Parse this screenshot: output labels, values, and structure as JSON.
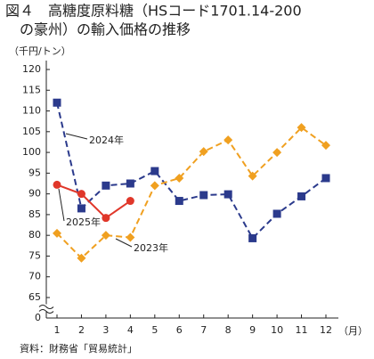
{
  "chart_data": {
    "type": "line",
    "title": [
      "図４　高糖度原料糖（HSコード1701.14-200",
      "の豪州）の輸入価格の推移"
    ],
    "y_unit": "（千円/トン）",
    "x_unit": "（月）",
    "source": "資料：財務省「貿易統計」",
    "categories": [
      1,
      2,
      3,
      4,
      5,
      6,
      7,
      8,
      9,
      10,
      11,
      12
    ],
    "ylim": [
      0,
      120
    ],
    "yticks": [
      0,
      65,
      70,
      75,
      80,
      85,
      90,
      95,
      100,
      105,
      110,
      115,
      120
    ],
    "axis_break": [
      0,
      65
    ],
    "grid": false,
    "series": [
      {
        "name": "2024年",
        "color": "#2b3a8c",
        "dash": true,
        "marker": "square",
        "values": [
          112,
          86.5,
          92,
          92.5,
          95.5,
          88.3,
          89.7,
          89.9,
          79.3,
          85.2,
          89.4,
          93.8
        ]
      },
      {
        "name": "2023年",
        "color": "#f0a020",
        "dash": true,
        "marker": "diamond",
        "values": [
          80.5,
          74.5,
          80,
          79.5,
          92,
          93.8,
          100.2,
          103,
          94.3,
          100,
          106,
          101.7
        ]
      },
      {
        "name": "2025年",
        "color": "#e0372a",
        "dash": false,
        "marker": "circle",
        "values": [
          92.2,
          90,
          84.2,
          88.3,
          null,
          null,
          null,
          null,
          null,
          null,
          null,
          null
        ]
      }
    ]
  }
}
